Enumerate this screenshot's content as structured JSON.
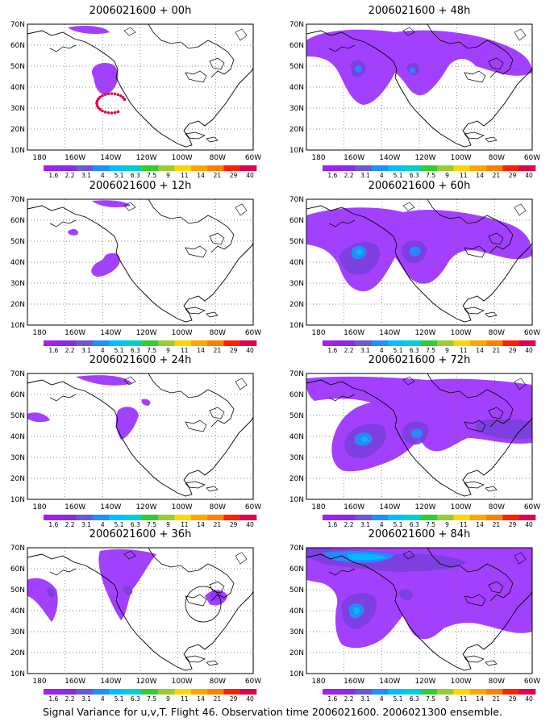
{
  "caption": "Signal Variance for u,v,T. Flight 46. Observation time 2006021600. 2006021300 ensemble.",
  "axes": {
    "y_ticks": [
      "70N",
      "60N",
      "50N",
      "40N",
      "30N",
      "20N",
      "10N"
    ],
    "x_ticks": [
      "180",
      "160W",
      "140W",
      "120W",
      "100W",
      "80W",
      "60W"
    ]
  },
  "colorbar": {
    "levels": [
      "1.6",
      "2.2",
      "3.1",
      "4",
      "5.1",
      "6.3",
      "7.5",
      "9",
      "11",
      "14",
      "21",
      "29",
      "40"
    ],
    "colors": [
      "#a020f0",
      "#8a2be2",
      "#6a5acd",
      "#1e90ff",
      "#00bfff",
      "#00ced1",
      "#32cd32",
      "#9acd32",
      "#ffd700",
      "#ffa500",
      "#ff7f00",
      "#ff2000",
      "#e00050"
    ]
  },
  "panels": [
    {
      "title": "2006021600 + 00h"
    },
    {
      "title": "2006021600 + 48h"
    },
    {
      "title": "2006021600 + 12h"
    },
    {
      "title": "2006021600 + 60h"
    },
    {
      "title": "2006021600 + 24h"
    },
    {
      "title": "2006021600 + 72h"
    },
    {
      "title": "2006021600 + 36h"
    },
    {
      "title": "2006021600 + 84h"
    }
  ]
}
